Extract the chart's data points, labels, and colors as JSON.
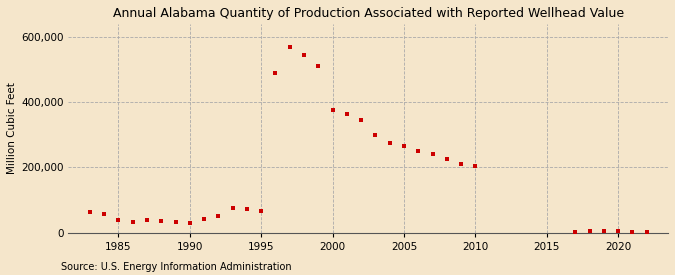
{
  "title": "Annual Alabama Quantity of Production Associated with Reported Wellhead Value",
  "ylabel": "Million Cubic Feet",
  "source": "Source: U.S. Energy Information Administration",
  "background_color": "#f5e6cb",
  "plot_bg_color": "#f5e6cb",
  "marker_color": "#cc0000",
  "years": [
    1983,
    1984,
    1985,
    1986,
    1987,
    1988,
    1989,
    1990,
    1991,
    1992,
    1993,
    1994,
    1995,
    1996,
    1997,
    1998,
    1999,
    2000,
    2001,
    2002,
    2003,
    2004,
    2005,
    2006,
    2007,
    2008,
    2009,
    2010,
    2017,
    2018,
    2019,
    2020,
    2021,
    2022
  ],
  "values": [
    62000,
    57000,
    38000,
    33000,
    37000,
    35000,
    32000,
    30000,
    42000,
    50000,
    75000,
    73000,
    65000,
    490000,
    570000,
    545000,
    510000,
    375000,
    365000,
    345000,
    300000,
    275000,
    265000,
    250000,
    240000,
    225000,
    210000,
    205000,
    3000,
    4000,
    5000,
    5000,
    3000,
    2000
  ],
  "ylim": [
    0,
    640000
  ],
  "xlim": [
    1981.5,
    2023.5
  ],
  "yticks": [
    0,
    200000,
    400000,
    600000
  ],
  "xticks": [
    1985,
    1990,
    1995,
    2000,
    2005,
    2010,
    2015,
    2020
  ],
  "grid_color": "#aaaaaa",
  "title_fontsize": 9,
  "tick_fontsize": 7.5,
  "ylabel_fontsize": 7.5,
  "source_fontsize": 7
}
